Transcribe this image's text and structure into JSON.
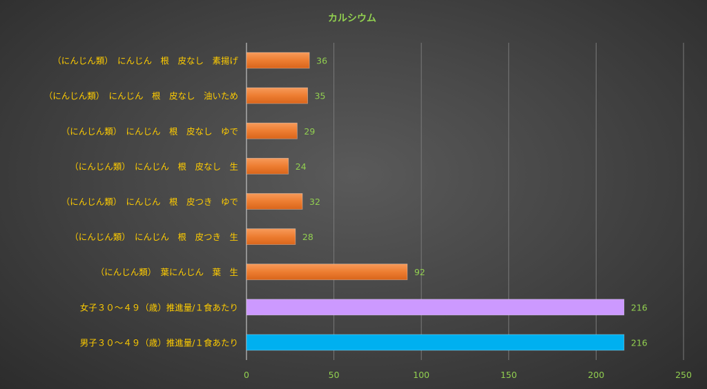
{
  "chart_data": {
    "type": "bar",
    "orientation": "horizontal",
    "title": "カルシウム",
    "xlabel": "",
    "ylabel": "",
    "xlim": [
      0,
      250
    ],
    "ticks": [
      0,
      50,
      100,
      150,
      200,
      250
    ],
    "grid": true,
    "legend": "none",
    "categories": [
      "（にんじん類）　にんじん　根　皮なし　素揚げ",
      "（にんじん類）　にんじん　根　皮なし　油いため",
      "（にんじん類）　にんじん　根　皮なし　ゆで",
      "（にんじん類）　にんじん　根　皮なし　生",
      "（にんじん類）　にんじん　根　皮つき　ゆで",
      "（にんじん類）　にんじん　根　皮つき　生",
      "（にんじん類）　葉にんじん　葉　生",
      "女子３０～４９（歳）推進量/１食あたり",
      "男子３０～４９（歳）推進量/１食あたり"
    ],
    "values": [
      36,
      35,
      29,
      24,
      32,
      28,
      92,
      216,
      216
    ],
    "colors": [
      "#ed7d31",
      "#ed7d31",
      "#ed7d31",
      "#ed7d31",
      "#ed7d31",
      "#ed7d31",
      "#ed7d31",
      "#cc99ff",
      "#00b0f0"
    ]
  }
}
